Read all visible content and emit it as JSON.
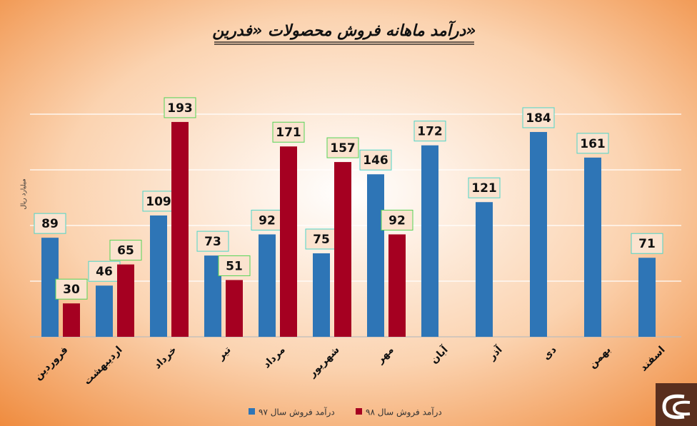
{
  "chart_data": {
    "type": "bar",
    "title": "درآمد ماهانه فروش محصولات «فدرین»",
    "y_label": "میلیارد ریال",
    "categories": [
      "فروردین",
      "اردیبهشت",
      "خرداد",
      "تیر",
      "مرداد",
      "شهریور",
      "مهر",
      "آبان",
      "آذر",
      "دی",
      "بهمن",
      "اسفند"
    ],
    "series": [
      {
        "name": "درآمد فروش سال ۹۷",
        "color": "#2e75b6",
        "values": [
          89,
          46,
          109,
          73,
          92,
          75,
          146,
          172,
          121,
          184,
          161,
          71
        ]
      },
      {
        "name": "درآمد فروش سال ۹۸",
        "color": "#a50021",
        "values": [
          30,
          65,
          193,
          51,
          171,
          157,
          92,
          null,
          null,
          null,
          null,
          null
        ]
      }
    ],
    "ylim": [
      0,
      250
    ],
    "yticks": [
      0,
      50,
      100,
      150,
      200
    ],
    "grid": true,
    "legend": "bottom"
  }
}
